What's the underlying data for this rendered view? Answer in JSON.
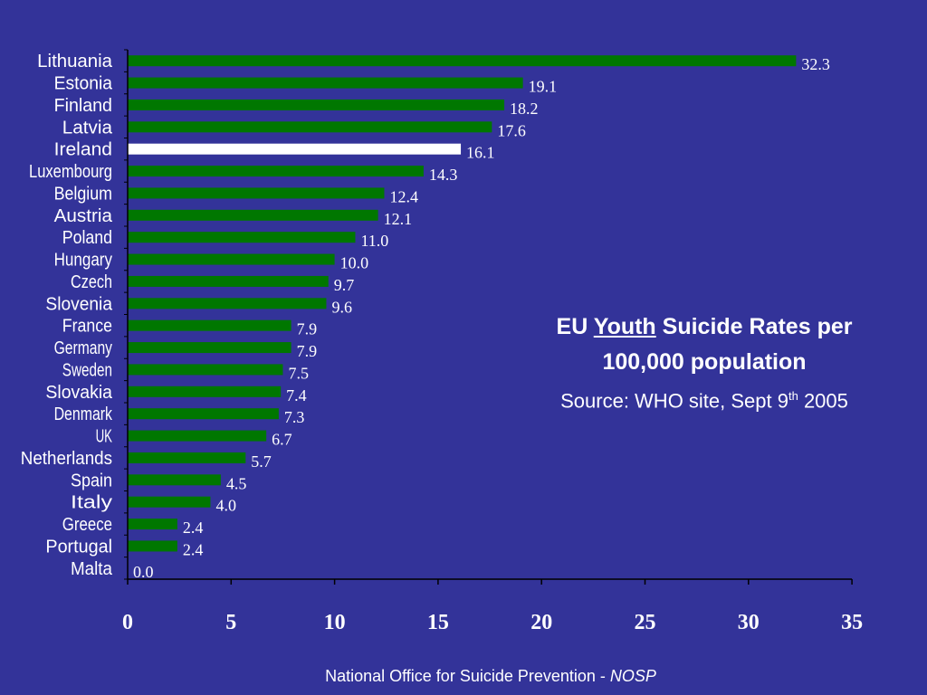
{
  "chart_data": {
    "type": "bar",
    "orientation": "horizontal",
    "categories": [
      "Lithuania",
      "Estonia",
      "Finland",
      "Latvia",
      "Ireland",
      "Luxembourg",
      "Belgium",
      "Austria",
      "Poland",
      "Hungary",
      "Czech",
      "Slovenia",
      "France",
      "Germany",
      "Sweden",
      "Slovakia",
      "Denmark",
      "UK",
      "Netherlands",
      "Spain",
      "Italy",
      "Greece",
      "Portugal",
      "Malta"
    ],
    "values": [
      32.3,
      19.1,
      18.2,
      17.6,
      16.1,
      14.3,
      12.4,
      12.1,
      11.0,
      10.0,
      9.7,
      9.6,
      7.9,
      7.9,
      7.5,
      7.4,
      7.3,
      6.7,
      5.7,
      4.5,
      4.0,
      2.4,
      2.4,
      0.0
    ],
    "value_labels": [
      "32.3",
      "19.1",
      "18.2",
      "17.6",
      "16.1",
      "14.3",
      "12.4",
      "12.1",
      "11.0",
      "10.0",
      "9.7",
      "9.6",
      "7.9",
      "7.9",
      "7.5",
      "7.4",
      "7.3",
      "6.7",
      "5.7",
      "4.5",
      "4.0",
      "2.4",
      "2.4",
      "0.0"
    ],
    "highlight_category": "Ireland",
    "xlim": [
      0,
      35
    ],
    "xticks": [
      0,
      5,
      10,
      15,
      20,
      25,
      30,
      35
    ],
    "grid": false,
    "colors": {
      "background": "#333399",
      "bar": "#007700",
      "highlight_bar": "#ffffff",
      "axis": "#000000",
      "text": "#ffffff"
    }
  },
  "caption": {
    "title_prefix": "EU ",
    "title_underlined": "Youth",
    "title_suffix": " Suicide Rates per 100,000 population",
    "source_prefix": "Source: WHO site, Sept 9",
    "source_sup": "th",
    "source_suffix": " 2005"
  },
  "footer": {
    "text": "National Office for Suicide Prevention - ",
    "emphasis": "NOSP"
  }
}
